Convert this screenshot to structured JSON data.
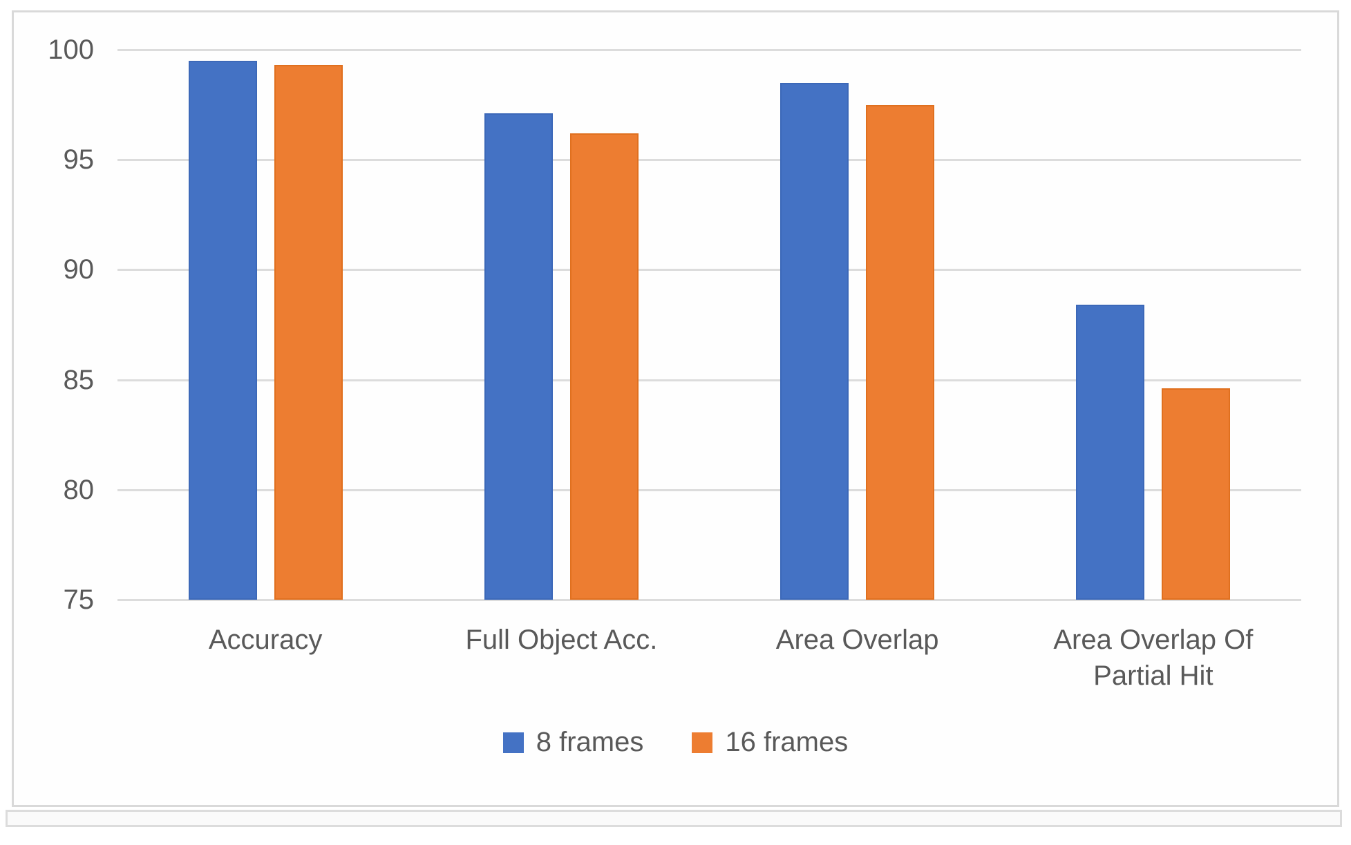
{
  "chart_data": {
    "type": "bar",
    "categories": [
      "Accuracy",
      "Full Object Acc.",
      "Area Overlap",
      "Area Overlap Of Partial Hit"
    ],
    "series": [
      {
        "name": "8 frames",
        "color": "#4472c4",
        "values": [
          99.5,
          97.1,
          98.5,
          88.4
        ]
      },
      {
        "name": "16 frames",
        "color": "#ed7d31",
        "values": [
          99.3,
          96.2,
          97.5,
          84.6
        ]
      }
    ],
    "title": "",
    "xlabel": "",
    "ylabel": "",
    "ylim": [
      75,
      100
    ],
    "y_ticks": [
      100,
      95,
      90,
      85,
      80,
      75
    ],
    "grid": true,
    "legend_position": "bottom",
    "colors": {
      "gridline": "#dcdcdc",
      "axis_text": "#595959",
      "chart_border": "#d9d9d9",
      "background": "#ffffff"
    }
  }
}
